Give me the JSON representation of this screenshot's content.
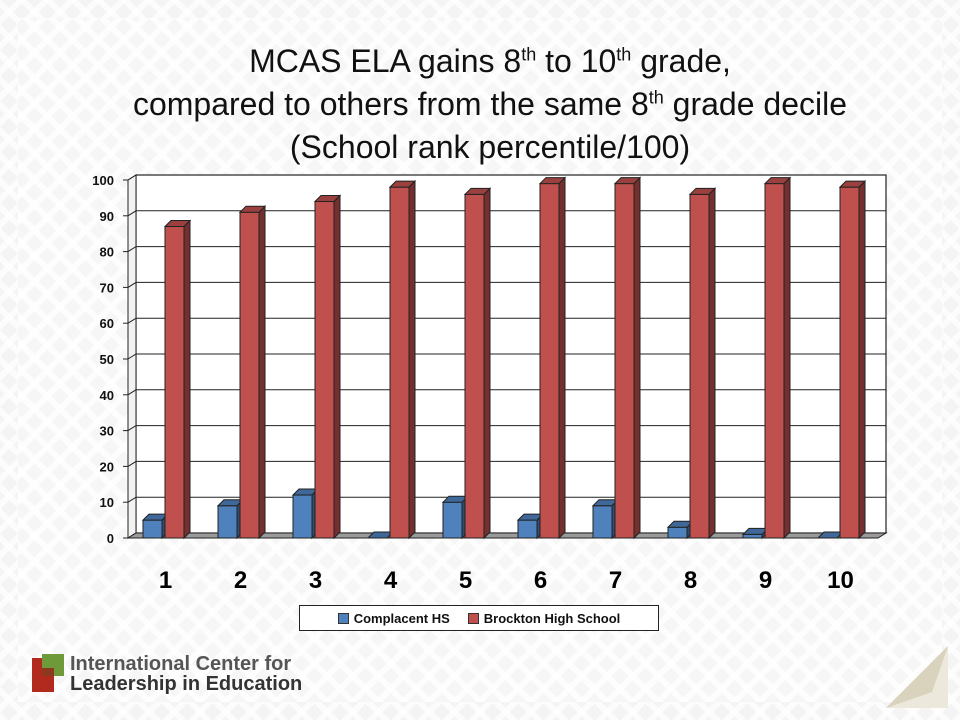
{
  "slide": {
    "title_line1_a": "MCAS ELA gains 8",
    "title_line1_sup1": "th",
    "title_line1_b": " to 10",
    "title_line1_sup2": "th",
    "title_line1_c": " grade,",
    "title_line2_a": "compared to others from the same 8",
    "title_line2_sup": "th",
    "title_line2_b": " grade decile",
    "title_line3": "(School rank percentile/100)"
  },
  "logo": {
    "line1": "International Center for",
    "line2": "Leadership in Education"
  },
  "chart_data": {
    "type": "bar",
    "categories": [
      "1",
      "2",
      "3",
      "4",
      "5",
      "6",
      "7",
      "8",
      "9",
      "10"
    ],
    "series": [
      {
        "name": "Complacent HS",
        "values": [
          5,
          9,
          12,
          0,
          10,
          5,
          9,
          3,
          1,
          0
        ],
        "color": "#4f81bd"
      },
      {
        "name": "Brockton High School",
        "values": [
          87,
          91,
          94,
          98,
          96,
          99,
          99,
          96,
          99,
          98
        ],
        "color": "#c0504d"
      }
    ],
    "ylim": [
      0,
      100
    ],
    "yticks": [
      0,
      10,
      20,
      30,
      40,
      50,
      60,
      70,
      80,
      90,
      100
    ],
    "grid": true,
    "legend_position": "bottom",
    "style": "3d-clustered-column"
  }
}
